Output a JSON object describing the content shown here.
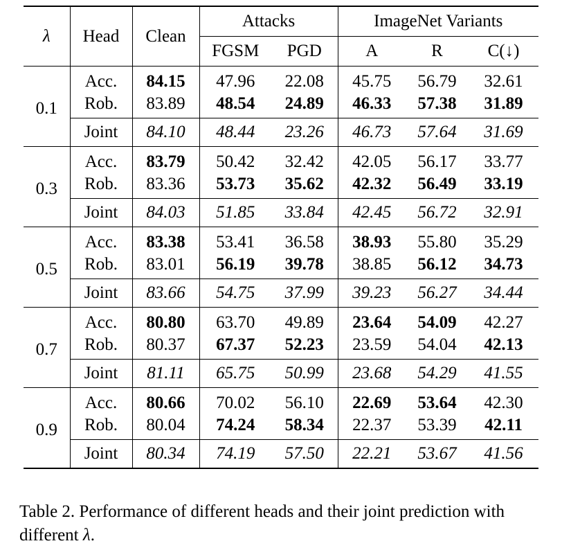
{
  "table": {
    "headers": {
      "lambda": "λ",
      "head": "Head",
      "clean": "Clean",
      "attacks_group": "Attacks",
      "variants_group": "ImageNet Variants",
      "fgsm": "FGSM",
      "pgd": "PGD",
      "a": "A",
      "r": "R",
      "c": "C(↓)"
    },
    "blocks": [
      {
        "lambda": "0.1",
        "rows": [
          {
            "head": "Acc.",
            "clean": "84.15",
            "fgsm": "47.96",
            "pgd": "22.08",
            "a": "45.75",
            "r": "56.79",
            "c": "32.61"
          },
          {
            "head": "Rob.",
            "clean": "83.89",
            "fgsm": "48.54",
            "pgd": "24.89",
            "a": "46.33",
            "r": "57.38",
            "c": "31.89"
          },
          {
            "head": "Joint",
            "clean": "84.10",
            "fgsm": "48.44",
            "pgd": "23.26",
            "a": "46.73",
            "r": "57.64",
            "c": "31.69"
          }
        ]
      },
      {
        "lambda": "0.3",
        "rows": [
          {
            "head": "Acc.",
            "clean": "83.79",
            "fgsm": "50.42",
            "pgd": "32.42",
            "a": "42.05",
            "r": "56.17",
            "c": "33.77"
          },
          {
            "head": "Rob.",
            "clean": "83.36",
            "fgsm": "53.73",
            "pgd": "35.62",
            "a": "42.32",
            "r": "56.49",
            "c": "33.19"
          },
          {
            "head": "Joint",
            "clean": "84.03",
            "fgsm": "51.85",
            "pgd": "33.84",
            "a": "42.45",
            "r": "56.72",
            "c": "32.91"
          }
        ]
      },
      {
        "lambda": "0.5",
        "rows": [
          {
            "head": "Acc.",
            "clean": "83.38",
            "fgsm": "53.41",
            "pgd": "36.58",
            "a": "38.93",
            "r": "55.80",
            "c": "35.29"
          },
          {
            "head": "Rob.",
            "clean": "83.01",
            "fgsm": "56.19",
            "pgd": "39.78",
            "a": "38.85",
            "r": "56.12",
            "c": "34.73"
          },
          {
            "head": "Joint",
            "clean": "83.66",
            "fgsm": "54.75",
            "pgd": "37.99",
            "a": "39.23",
            "r": "56.27",
            "c": "34.44"
          }
        ]
      },
      {
        "lambda": "0.7",
        "rows": [
          {
            "head": "Acc.",
            "clean": "80.80",
            "fgsm": "63.70",
            "pgd": "49.89",
            "a": "23.64",
            "r": "54.09",
            "c": "42.27"
          },
          {
            "head": "Rob.",
            "clean": "80.37",
            "fgsm": "67.37",
            "pgd": "52.23",
            "a": "23.59",
            "r": "54.04",
            "c": "42.13"
          },
          {
            "head": "Joint",
            "clean": "81.11",
            "fgsm": "65.75",
            "pgd": "50.99",
            "a": "23.68",
            "r": "54.29",
            "c": "41.55"
          }
        ]
      },
      {
        "lambda": "0.9",
        "rows": [
          {
            "head": "Acc.",
            "clean": "80.66",
            "fgsm": "70.02",
            "pgd": "56.10",
            "a": "22.69",
            "r": "53.64",
            "c": "42.30"
          },
          {
            "head": "Rob.",
            "clean": "80.04",
            "fgsm": "74.24",
            "pgd": "58.34",
            "a": "22.37",
            "r": "53.39",
            "c": "42.11"
          },
          {
            "head": "Joint",
            "clean": "80.34",
            "fgsm": "74.19",
            "pgd": "57.50",
            "a": "22.21",
            "r": "53.67",
            "c": "41.56"
          }
        ]
      }
    ]
  },
  "caption": {
    "label": "Table 2.",
    "text_before": "Performance of different heads and their joint prediction with different ",
    "symbol": "λ",
    "text_after": "."
  }
}
